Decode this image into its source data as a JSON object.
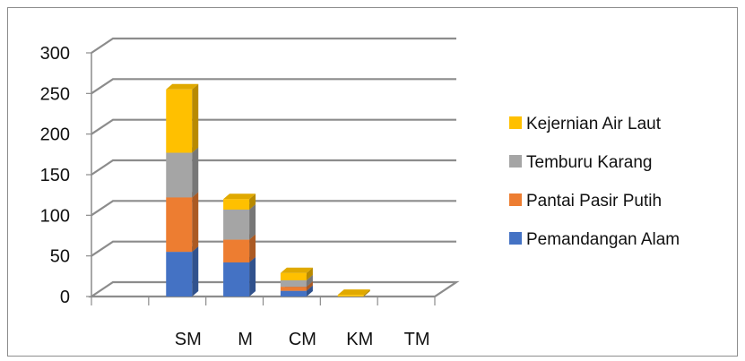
{
  "chart_data": {
    "type": "bar",
    "stacked": true,
    "three_d": true,
    "title": "",
    "xlabel": "",
    "ylabel": "",
    "categories": [
      "SM",
      "M",
      "CM",
      "KM",
      "TM"
    ],
    "ylim": [
      0,
      300
    ],
    "yticks": [
      0,
      50,
      100,
      150,
      200,
      250,
      300
    ],
    "grid": true,
    "legend_position": "right",
    "series": [
      {
        "name": "Pemandangan Alam",
        "values": [
          55,
          42,
          7,
          0,
          0
        ],
        "color": "#4472C4"
      },
      {
        "name": "Pantai Pasir Putih",
        "values": [
          67,
          28,
          5,
          0,
          0
        ],
        "color": "#ED7D31"
      },
      {
        "name": "Temburu Karang",
        "values": [
          55,
          37,
          8,
          0,
          0
        ],
        "color": "#A5A5A5"
      },
      {
        "name": "Kejernian Air  Laut",
        "values": [
          78,
          13,
          9,
          2,
          0
        ],
        "color": "#FFC000"
      }
    ],
    "legend_order": [
      "Kejernian Air  Laut",
      "Temburu Karang",
      "Pantai Pasir Putih",
      "Pemandangan Alam"
    ]
  }
}
